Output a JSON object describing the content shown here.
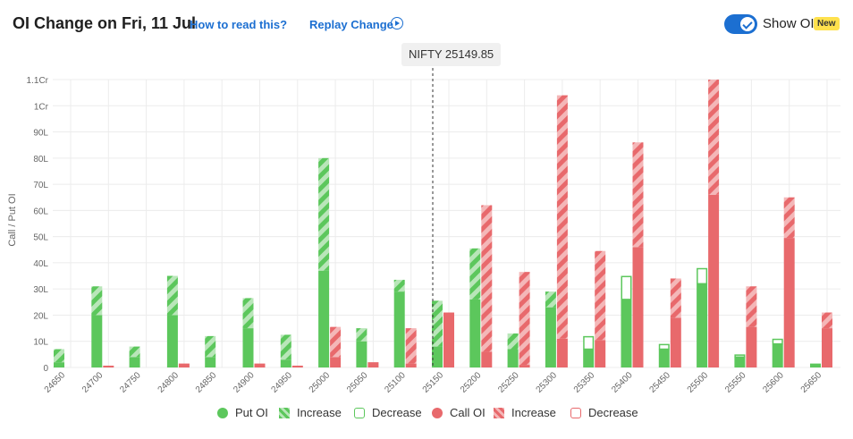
{
  "header": {
    "title": "OI Change on Fri, 11 Jul",
    "how_to_read": "How to read this?",
    "replay": "Replay Change",
    "show_oi_label": "Show OI",
    "new_badge": "New",
    "show_oi_enabled": true
  },
  "spot_label": "NIFTY 25149.85",
  "colors": {
    "put": "#5cc75c",
    "put_light": "#b9e6b9",
    "call": "#e8696c",
    "call_light": "#f4b7b8",
    "grid": "#ececec",
    "axis_text": "#666666"
  },
  "chart_data": {
    "type": "bar",
    "ylabel": "Call / Put OI",
    "y_ticks": [
      "0",
      "10L",
      "20L",
      "30L",
      "40L",
      "50L",
      "60L",
      "70L",
      "80L",
      "90L",
      "1Cr",
      "1.1Cr"
    ],
    "ylim": [
      0,
      110
    ],
    "y_unit": "Lakh",
    "spot_strike": 25150,
    "categories": [
      "24650",
      "24700",
      "24750",
      "24800",
      "24850",
      "24900",
      "24950",
      "25000",
      "25050",
      "25100",
      "25150",
      "25200",
      "25250",
      "25300",
      "25350",
      "25400",
      "25450",
      "25500",
      "25550",
      "25600",
      "25650"
    ],
    "put": {
      "base": [
        2,
        20,
        4,
        20,
        4,
        15,
        3,
        37,
        10,
        29,
        8,
        26,
        7,
        23,
        7,
        26,
        7,
        32,
        4,
        9,
        1.5
      ],
      "increase": [
        5,
        11,
        4,
        15,
        8,
        11.5,
        9.5,
        43,
        5,
        4.5,
        17.5,
        19.5,
        6,
        6,
        0,
        0,
        0,
        0,
        0,
        0,
        0
      ],
      "decrease": [
        0,
        0,
        0,
        0,
        0,
        0,
        0,
        0,
        0,
        0,
        0,
        0,
        0,
        0,
        5,
        9,
        2,
        6,
        1,
        2,
        0
      ]
    },
    "call": {
      "base": [
        0,
        0.7,
        0,
        1.5,
        0,
        1.5,
        0.7,
        4,
        2,
        1.5,
        21,
        6,
        1,
        11,
        10.5,
        46,
        19,
        66,
        15.5,
        49.5,
        15
      ],
      "increase": [
        0,
        0,
        0,
        0,
        0,
        0,
        0,
        11.5,
        0,
        13.5,
        0,
        56,
        35.5,
        93,
        34,
        40,
        15,
        44,
        15.5,
        15.5,
        6
      ],
      "decrease": [
        0,
        0,
        0,
        0,
        0,
        0,
        0,
        0,
        0,
        0,
        0,
        0,
        0,
        0,
        0,
        0,
        0,
        0,
        0,
        0,
        0
      ]
    }
  },
  "legend": [
    {
      "label": "Put OI",
      "kind": "put-solid"
    },
    {
      "label": "Increase",
      "kind": "put-hatch"
    },
    {
      "label": "Decrease",
      "kind": "put-outline"
    },
    {
      "label": "Call OI",
      "kind": "call-solid"
    },
    {
      "label": "Increase",
      "kind": "call-hatch"
    },
    {
      "label": "Decrease",
      "kind": "call-outline"
    }
  ]
}
